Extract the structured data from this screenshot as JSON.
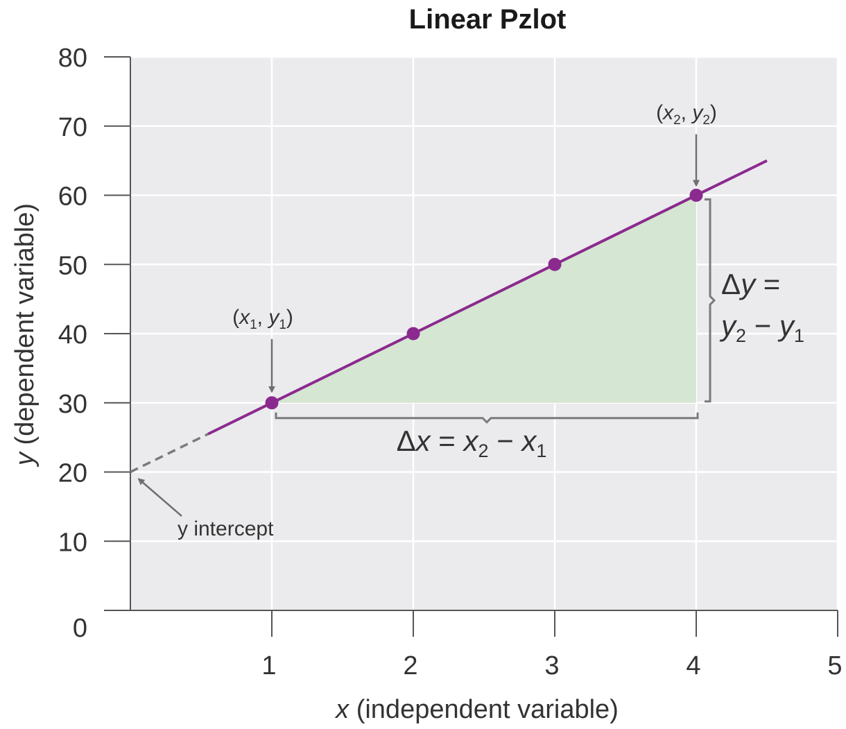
{
  "chart_data": {
    "type": "line",
    "title": "Linear Pzlot",
    "xlabel": {
      "variable": "x",
      "rest": " (independent variable)"
    },
    "ylabel": {
      "variable": "y",
      "rest": " (dependent variable)"
    },
    "xlim": [
      0,
      5
    ],
    "ylim": [
      0,
      80
    ],
    "x_ticks": [
      1,
      2,
      3,
      4,
      5
    ],
    "y_ticks": [
      0,
      10,
      20,
      30,
      40,
      50,
      60,
      70,
      80
    ],
    "grid": true,
    "series": [
      {
        "x": [
          1,
          2,
          3,
          4
        ],
        "y": [
          30,
          40,
          50,
          60
        ],
        "line": {
          "slope": 10,
          "intercept": 20,
          "solid_from": 0.55,
          "solid_to": 4.5,
          "dashed_from": 0,
          "dashed_to": 0.55
        },
        "color": "#8b2a8e"
      }
    ],
    "annotations": {
      "point1": {
        "x": 1,
        "y": 30,
        "label": {
          "open": "(",
          "v1": "x",
          "s1": "1",
          "sep": ", ",
          "v2": "y",
          "s2": "1",
          "close": ")"
        }
      },
      "point2": {
        "x": 4,
        "y": 60,
        "label": {
          "open": "(",
          "v1": "x",
          "s1": "2",
          "sep": ", ",
          "v2": "y",
          "s2": "2",
          "close": ")"
        }
      },
      "delta_x": {
        "delta": "Δ",
        "v": "x",
        "eq": " = ",
        "a": "x",
        "as": "2",
        "minus": " − ",
        "b": "x",
        "bs": "1"
      },
      "delta_y": {
        "delta": "Δ",
        "v": "y",
        "eq": " =",
        "a": "y",
        "as": "2",
        "minus": " − ",
        "b": "y",
        "bs": "1"
      },
      "y_intercept": {
        "x": 0,
        "y": 20,
        "label": "y intercept"
      }
    },
    "colors": {
      "plot_background": "#ebebed",
      "grid": "#ffffff",
      "fill": "#d5e6d3",
      "line": "#8b2a8e",
      "dashed": "#7a7a7a",
      "bracket": "#7a7a7a",
      "axis": "#555555"
    }
  }
}
